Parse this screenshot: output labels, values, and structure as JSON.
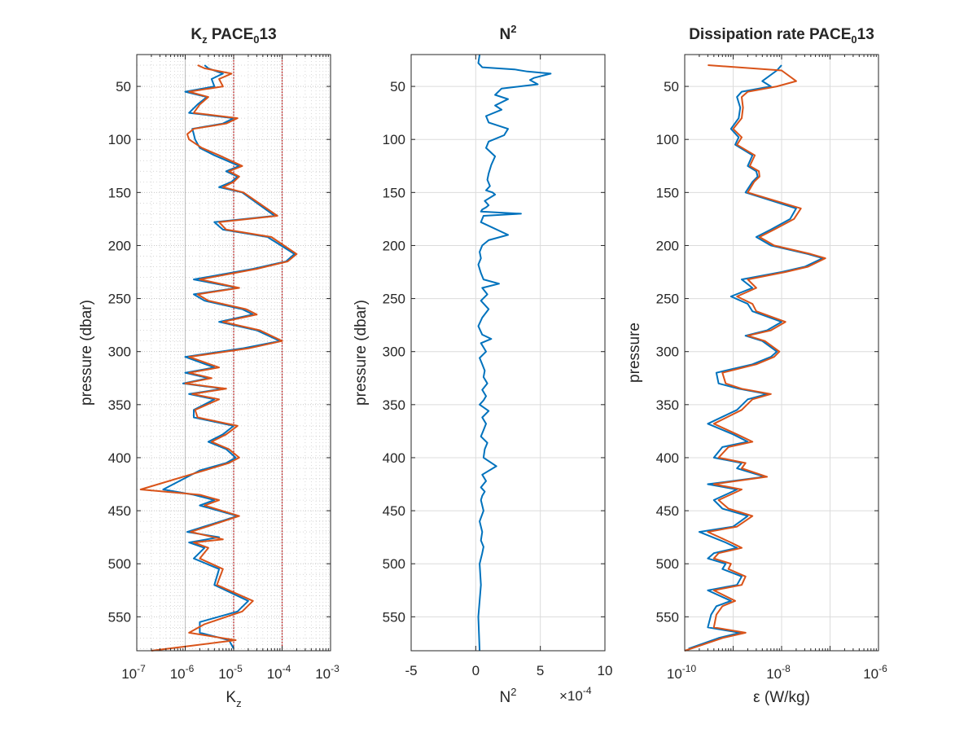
{
  "figure": {
    "colors": {
      "series_a": "#0072BD",
      "series_b": "#D95319",
      "ref_lines": "#C00000",
      "grid": "#DCDCDC",
      "axes": "#262626"
    }
  },
  "chart_data": [
    {
      "type": "line",
      "title": "K_z PACE_0 13",
      "title_parts": {
        "main": "K",
        "sub1": "z",
        "mid": " PACE",
        "sub2": "0",
        "end": "13"
      },
      "xlabel": "K_z",
      "xlabel_parts": {
        "main": "K",
        "sub": "z"
      },
      "ylabel": "pressure (dbar)",
      "xscale": "log",
      "xlim": [
        1e-07,
        0.001
      ],
      "x_tick_labels": [
        {
          "base": "10",
          "exp": "-7"
        },
        {
          "base": "10",
          "exp": "-6"
        },
        {
          "base": "10",
          "exp": "-5"
        },
        {
          "base": "10",
          "exp": "-4"
        },
        {
          "base": "10",
          "exp": "-3"
        }
      ],
      "ylim": [
        20,
        582
      ],
      "y_reversed": true,
      "y_ticks": [
        "50",
        "100",
        "150",
        "200",
        "250",
        "300",
        "350",
        "400",
        "450",
        "500",
        "550"
      ],
      "grid": "minor-dotted",
      "reference_lines_x": [
        1e-05,
        0.0001
      ],
      "series": [
        {
          "color": "#0072BD",
          "x": [
            2.5e-06,
            3e-06,
            6e-06,
            3.5e-06,
            4e-06,
            1e-06,
            2.8e-06,
            1.8e-06,
            1.2e-06,
            1e-05,
            6e-06,
            1.4e-06,
            1.5e-06,
            1.6e-06,
            2e-06,
            4e-06,
            1.3e-05,
            7e-06,
            1.2e-05,
            9e-06,
            5e-06,
            1.5e-05,
            7e-05,
            4e-06,
            6e-06,
            5e-05,
            0.00018,
            0.00012,
            2.5e-05,
            1.5e-06,
            1.2e-05,
            1.5e-06,
            2.5e-06,
            1.5e-05,
            2.5e-05,
            5e-06,
            3e-05,
            9e-05,
            1.5e-05,
            1e-06,
            4e-06,
            1e-06,
            3e-06,
            9e-07,
            6e-06,
            1.2e-06,
            4e-06,
            1.5e-06,
            1.5e-06,
            1e-05,
            6e-06,
            3e-06,
            7e-06,
            1.1e-05,
            7e-06,
            2e-06,
            3.5e-07,
            1.5e-06,
            4e-06,
            2e-06,
            1.2e-05,
            1.1e-06,
            5e-06,
            1.2e-06,
            2.5e-06,
            1.5e-06,
            5e-06,
            4e-06,
            2e-05,
            1.2e-05,
            2e-06,
            2e-06,
            8e-06,
            1e-05
          ],
          "y": [
            30,
            33,
            38,
            43,
            50,
            55,
            60,
            67,
            75,
            80,
            85,
            90,
            95,
            100,
            108,
            115,
            125,
            130,
            135,
            140,
            145,
            150,
            172,
            178,
            185,
            192,
            208,
            215,
            222,
            232,
            240,
            246,
            252,
            260,
            265,
            272,
            280,
            290,
            297,
            305,
            315,
            320,
            325,
            330,
            335,
            340,
            345,
            355,
            362,
            370,
            378,
            385,
            392,
            400,
            405,
            412,
            430,
            435,
            440,
            445,
            455,
            470,
            475,
            480,
            485,
            495,
            505,
            520,
            535,
            545,
            555,
            565,
            572,
            580
          ]
        },
        {
          "color": "#D95319",
          "x": [
            1.8e-06,
            2.5e-06,
            9e-06,
            5e-06,
            6e-06,
            1.2e-06,
            3e-06,
            2e-06,
            1.5e-06,
            1.2e-05,
            7e-06,
            1.5e-06,
            1.1e-06,
            1.2e-06,
            2.2e-06,
            5e-06,
            1.5e-05,
            8e-06,
            1.3e-05,
            1e-05,
            6e-06,
            1.6e-05,
            8e-05,
            5e-06,
            7e-06,
            6e-05,
            0.0002,
            0.00013,
            3e-05,
            2e-06,
            1.3e-05,
            1.8e-06,
            3e-06,
            1.8e-05,
            3e-05,
            6e-06,
            3.5e-05,
            0.0001,
            2e-05,
            1.2e-06,
            5e-06,
            1.2e-06,
            3.5e-06,
            1e-06,
            7e-06,
            1.4e-06,
            5e-06,
            1.6e-06,
            1.8e-06,
            1.2e-05,
            7e-06,
            3.5e-06,
            8e-06,
            1.3e-05,
            8e-06,
            2.5e-06,
            1.2e-07,
            2e-06,
            5e-06,
            2.5e-06,
            1.3e-05,
            1.3e-06,
            6e-06,
            1.5e-06,
            3e-06,
            2e-06,
            6e-06,
            4.5e-06,
            2.5e-05,
            1.5e-05,
            2.5e-06,
            1.2e-06,
            1.1e-05,
            2e-07
          ],
          "y": [
            30,
            33,
            38,
            43,
            50,
            55,
            60,
            67,
            75,
            80,
            85,
            90,
            95,
            100,
            108,
            115,
            125,
            130,
            135,
            140,
            145,
            150,
            172,
            178,
            185,
            192,
            208,
            215,
            222,
            232,
            240,
            246,
            252,
            260,
            265,
            272,
            280,
            290,
            297,
            305,
            315,
            320,
            325,
            330,
            335,
            340,
            345,
            355,
            362,
            370,
            378,
            385,
            392,
            400,
            405,
            412,
            430,
            435,
            440,
            445,
            455,
            470,
            477,
            480,
            485,
            495,
            505,
            520,
            535,
            545,
            557,
            565,
            572,
            582
          ]
        }
      ]
    },
    {
      "type": "line",
      "title": "N^2",
      "title_parts": {
        "main": "N",
        "sup": "2"
      },
      "xlabel": "N^2",
      "xlabel_parts": {
        "main": "N",
        "sup": "2"
      },
      "ylabel": "pressure (dbar)",
      "xscale": "linear",
      "xlim": [
        -5,
        10
      ],
      "x_ticks": [
        "-5",
        "0",
        "5",
        "10"
      ],
      "x_exponent_label": {
        "prefix": "×10",
        "exp": "-4"
      },
      "ylim": [
        20,
        582
      ],
      "y_reversed": true,
      "y_ticks": [
        "50",
        "100",
        "150",
        "200",
        "250",
        "300",
        "350",
        "400",
        "450",
        "500",
        "550"
      ],
      "grid": "major",
      "series": [
        {
          "color": "#0072BD",
          "x": [
            0.3,
            0.2,
            0.5,
            3,
            4,
            5.8,
            4.5,
            4.2,
            4.8,
            2,
            1.5,
            2.5,
            1.5,
            2,
            0.8,
            1,
            2.5,
            2.2,
            1,
            0.8,
            1.5,
            1.2,
            1.0,
            0.9,
            1.1,
            0.8,
            1.3,
            1.5,
            0.7,
            1.0,
            0.8,
            0.5,
            0.4,
            3.5,
            0.6,
            0.4,
            2.5,
            1.0,
            0.5,
            0.3,
            0.4,
            0.2,
            0.4,
            0.6,
            1.8,
            0.5,
            0.9,
            0.4,
            1.0,
            0.5,
            0.2,
            0.5,
            1.2,
            0.4,
            0.6,
            0.8,
            0.3,
            0.5,
            0.7,
            0.6,
            0.9,
            0.5,
            0.8,
            0.6,
            0.3,
            1.0,
            0.5,
            0.8,
            0.6,
            0.4,
            0.9,
            0.7,
            0.6,
            1.6,
            0.5,
            0.8,
            0.4,
            0.7,
            0.5,
            0.4,
            0.6,
            0.3,
            0.5,
            0.4,
            0.6,
            0.5,
            0.3,
            0.4,
            0.2,
            0.3
          ],
          "y": [
            20,
            28,
            32,
            34,
            36,
            38,
            42,
            44,
            48,
            52,
            58,
            62,
            68,
            72,
            78,
            84,
            90,
            96,
            102,
            108,
            116,
            124,
            132,
            138,
            144,
            148,
            150,
            152,
            158,
            162,
            164,
            166,
            168,
            170,
            172,
            178,
            190,
            195,
            200,
            206,
            212,
            218,
            226,
            232,
            236,
            240,
            246,
            252,
            260,
            268,
            276,
            284,
            288,
            292,
            296,
            300,
            306,
            312,
            318,
            324,
            330,
            336,
            342,
            346,
            350,
            356,
            362,
            368,
            374,
            380,
            386,
            392,
            400,
            408,
            416,
            422,
            428,
            432,
            436,
            440,
            450,
            460,
            470,
            478,
            484,
            490,
            500,
            520,
            550,
            582
          ]
        }
      ]
    },
    {
      "type": "line",
      "title": "Dissipation rate PACE_0 13",
      "title_parts": {
        "main": "Dissipation rate PACE",
        "sub": "0",
        "end": "13"
      },
      "xlabel": "ε (W/kg)",
      "ylabel": "pressure",
      "xscale": "log",
      "xlim": [
        1e-10,
        1e-06
      ],
      "x_tick_labels": [
        {
          "base": "10",
          "exp": "-10"
        },
        {
          "base": "10",
          "exp": "-8"
        },
        {
          "base": "10",
          "exp": "-6"
        }
      ],
      "ylim": [
        20,
        582
      ],
      "y_reversed": true,
      "y_ticks": [
        "50",
        "100",
        "150",
        "200",
        "250",
        "300",
        "350",
        "400",
        "450",
        "500",
        "550"
      ],
      "grid": "major",
      "series": [
        {
          "color": "#0072BD",
          "x": [
            1e-08,
            8e-09,
            4e-09,
            6e-09,
            1.5e-09,
            1.2e-09,
            1.4e-09,
            1.3e-09,
            9e-10,
            1.3e-09,
            1.1e-09,
            2.5e-09,
            2e-09,
            3e-09,
            3.2e-09,
            2.5e-09,
            1.8e-09,
            2e-08,
            1.5e-08,
            6e-09,
            3e-09,
            6e-09,
            3.5e-08,
            7e-08,
            3e-08,
            1e-08,
            1.5e-09,
            2.5e-09,
            9e-10,
            2e-09,
            2.5e-09,
            1e-08,
            5e-09,
            1.8e-09,
            4e-09,
            8e-09,
            6e-09,
            2.5e-09,
            4.5e-10,
            5e-10,
            1.3e-09,
            5e-09,
            2e-09,
            1.2e-09,
            3e-10,
            1e-09,
            2e-09,
            6e-10,
            4e-10,
            1.5e-09,
            1.2e-09,
            4.5e-09,
            3e-10,
            1.2e-09,
            4e-10,
            6e-10,
            2e-09,
            1e-09,
            2e-10,
            7e-10,
            1.2e-09,
            4e-10,
            3e-10,
            7e-10,
            6e-10,
            1.5e-09,
            1.2e-09,
            3e-10,
            9e-10,
            4.5e-10,
            3.5e-10,
            3e-10,
            1.4e-09,
            5e-10,
            1.2e-10
          ],
          "y": [
            30,
            35,
            45,
            50,
            55,
            60,
            70,
            80,
            90,
            98,
            105,
            115,
            125,
            130,
            135,
            140,
            150,
            165,
            175,
            185,
            192,
            200,
            208,
            212,
            220,
            225,
            232,
            240,
            248,
            255,
            262,
            272,
            280,
            285,
            290,
            300,
            305,
            312,
            320,
            330,
            335,
            340,
            345,
            355,
            368,
            378,
            385,
            390,
            400,
            405,
            410,
            418,
            425,
            430,
            440,
            448,
            455,
            465,
            470,
            480,
            485,
            490,
            495,
            500,
            505,
            512,
            520,
            525,
            535,
            540,
            548,
            560,
            565,
            570,
            580
          ]
        },
        {
          "color": "#D95319",
          "x": [
            3e-10,
            1e-08,
            2e-08,
            8e-09,
            2e-09,
            1.5e-09,
            1.6e-09,
            1.5e-09,
            1e-09,
            1.5e-09,
            1.2e-09,
            2.8e-09,
            2.2e-09,
            3.4e-09,
            3.5e-09,
            2.7e-09,
            2e-09,
            2.5e-08,
            1.8e-08,
            7e-09,
            3.5e-09,
            7e-09,
            4e-08,
            8e-08,
            3.5e-08,
            1.2e-08,
            2e-09,
            3e-09,
            1.2e-09,
            2.5e-09,
            3e-09,
            1.2e-08,
            6e-09,
            2e-09,
            4.5e-09,
            9e-09,
            7e-09,
            3e-09,
            6e-10,
            7e-10,
            1.5e-09,
            6e-09,
            2.5e-09,
            1.5e-09,
            4e-10,
            1.2e-09,
            2.5e-09,
            8e-10,
            5e-10,
            1.8e-09,
            1.5e-09,
            5e-09,
            4e-10,
            1.5e-09,
            5e-10,
            8e-10,
            2.5e-09,
            1.2e-09,
            3e-10,
            9e-10,
            1.5e-09,
            5e-10,
            4e-10,
            9e-10,
            8e-10,
            1.8e-09,
            1.5e-09,
            4e-10,
            1.1e-09,
            6e-10,
            4.5e-10,
            4e-10,
            1.8e-09,
            6e-10,
            1e-10
          ],
          "y": [
            30,
            35,
            45,
            50,
            55,
            60,
            70,
            80,
            90,
            98,
            105,
            115,
            125,
            130,
            135,
            140,
            150,
            165,
            175,
            185,
            192,
            200,
            208,
            212,
            220,
            225,
            232,
            240,
            248,
            255,
            262,
            272,
            280,
            285,
            290,
            300,
            305,
            312,
            320,
            330,
            335,
            340,
            345,
            355,
            368,
            378,
            385,
            390,
            400,
            405,
            410,
            418,
            425,
            430,
            440,
            448,
            455,
            465,
            470,
            480,
            485,
            490,
            495,
            500,
            505,
            512,
            520,
            525,
            535,
            540,
            548,
            560,
            565,
            570,
            582
          ]
        }
      ]
    }
  ]
}
